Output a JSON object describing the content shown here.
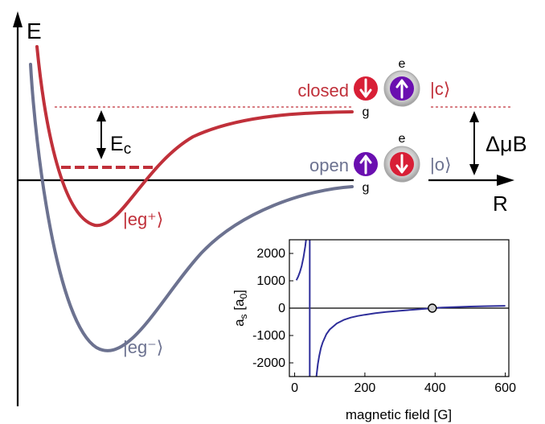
{
  "colors": {
    "closed_red": "#c0303a",
    "open_slate": "#6c7290",
    "axis_black": "#000000",
    "atom_red": "#d81f36",
    "atom_purple": "#6a0fb0",
    "halo_gray": "#a8a8a8",
    "inset_curve": "#2e2e9a"
  },
  "axes": {
    "energy_label": "E",
    "distance_label": "R"
  },
  "potentials": {
    "upper_label": "|eg⁺⟩",
    "lower_label": "|eg⁻⟩",
    "ec_label_main": "E",
    "ec_label_sub": "c",
    "zeeman_label": "ΔμB"
  },
  "channels": {
    "closed": {
      "label": "closed",
      "ket": "|c⟩",
      "top_atom": "e",
      "bottom_atom": "g",
      "left_spin": "down-arrow-icon",
      "right_spin": "up-arrow-icon"
    },
    "open": {
      "label": "open",
      "ket": "|o⟩",
      "top_atom": "e",
      "bottom_atom": "g",
      "left_spin": "up-arrow-icon",
      "right_spin": "down-arrow-icon"
    }
  },
  "chart_data": {
    "type": "line",
    "xlabel": "magnetic field [G]",
    "ylabel_main": "a",
    "ylabel_sub": "s",
    "ylabel_unit_main": "a",
    "ylabel_unit_sub": "0",
    "xlim": [
      -15,
      610
    ],
    "ylim": [
      -2500,
      2500
    ],
    "xticks": [
      0,
      200,
      400,
      600
    ],
    "yticks": [
      -2000,
      -1000,
      0,
      1000,
      2000
    ],
    "xtick_labels": [
      "0",
      "200",
      "400",
      "600"
    ],
    "ytick_labels": [
      "-2000",
      "-1000",
      "0",
      "1000",
      "2000"
    ],
    "resonance_field": 43,
    "zero_crossing_field": 392,
    "series": [
      {
        "x": [
          5,
          10,
          15,
          20,
          25,
          30,
          34,
          37
        ],
        "y": [
          1020,
          1150,
          1320,
          1540,
          1850,
          2250,
          2650,
          3100
        ]
      },
      {
        "x": [
          58,
          62,
          66,
          70,
          75,
          80,
          90,
          100,
          120,
          140,
          160,
          180,
          200,
          230,
          260,
          300,
          340,
          380,
          392,
          420,
          460,
          500,
          550,
          600
        ],
        "y": [
          -3000,
          -2500,
          -2050,
          -1750,
          -1450,
          -1250,
          -960,
          -780,
          -560,
          -430,
          -345,
          -285,
          -240,
          -185,
          -140,
          -95,
          -55,
          -15,
          0,
          22,
          42,
          58,
          73,
          85
        ]
      }
    ]
  }
}
